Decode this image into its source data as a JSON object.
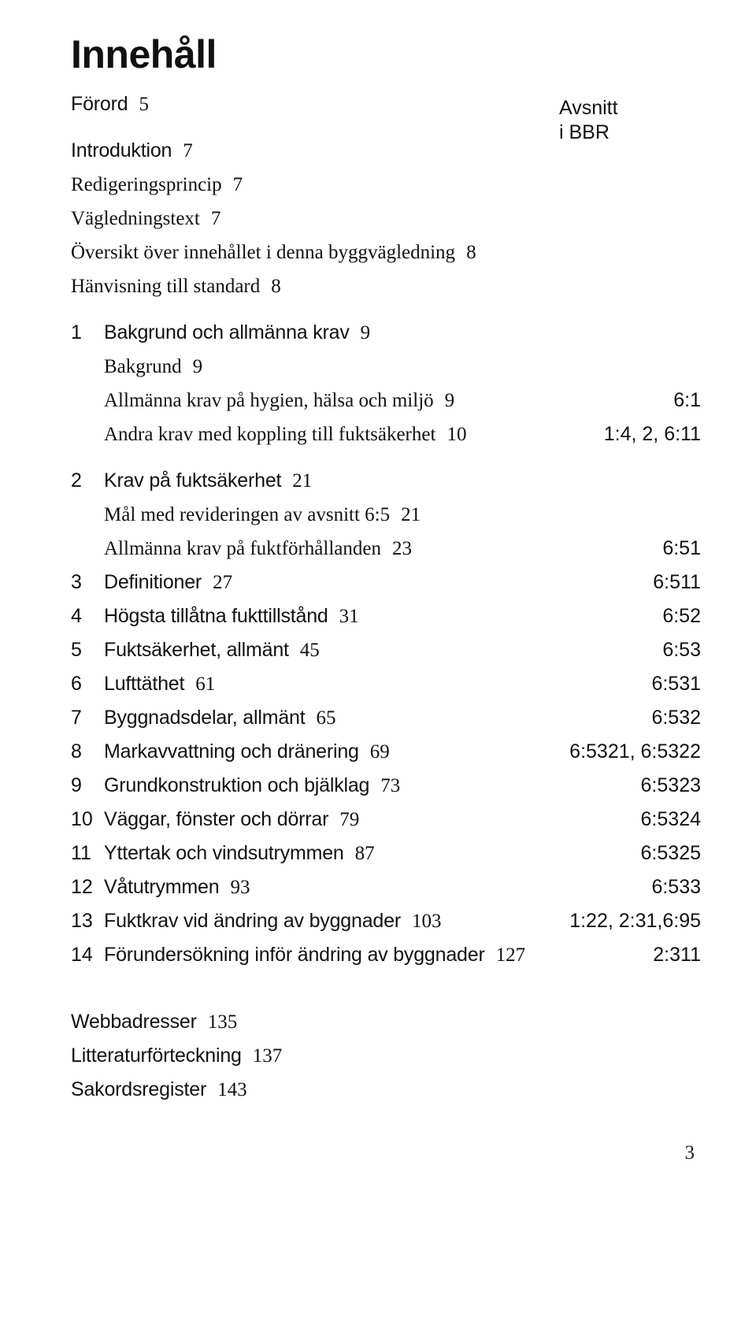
{
  "title": "Innehåll",
  "column_header_line1": "Avsnitt",
  "column_header_line2": "i BBR",
  "page_number": "3",
  "rows": [
    {
      "num": "",
      "label": "Förord",
      "page": "5",
      "bbr": "",
      "style": "bold",
      "gap": ""
    },
    {
      "num": "",
      "label": "Introduktion",
      "page": "7",
      "bbr": "",
      "style": "bold",
      "gap": "before"
    },
    {
      "num": "",
      "label": "Redigeringsprincip",
      "page": "7",
      "bbr": "",
      "style": "serif",
      "gap": ""
    },
    {
      "num": "",
      "label": "Vägledningstext",
      "page": "7",
      "bbr": "",
      "style": "serif",
      "gap": ""
    },
    {
      "num": "",
      "label": "Översikt över innehållet i denna byggvägledning",
      "page": "8",
      "bbr": "",
      "style": "serif",
      "gap": ""
    },
    {
      "num": "",
      "label": "Hänvisning till standard",
      "page": "8",
      "bbr": "",
      "style": "serif",
      "gap": ""
    },
    {
      "num": "1",
      "label": "Bakgrund och allmänna krav",
      "page": "9",
      "bbr": "",
      "style": "bold",
      "gap": "before"
    },
    {
      "num": "",
      "label": "Bakgrund",
      "page": "9",
      "bbr": "",
      "style": "serif",
      "gap": "",
      "indent": true
    },
    {
      "num": "",
      "label": "Allmänna krav på hygien, hälsa och miljö",
      "page": "9",
      "bbr": "6:1",
      "style": "serif",
      "gap": "",
      "indent": true
    },
    {
      "num": "",
      "label": "Andra krav med koppling till fuktsäkerhet",
      "page": "10",
      "bbr": "1:4, 2, 6:11",
      "style": "serif",
      "gap": "",
      "indent": true
    },
    {
      "num": "2",
      "label": "Krav på fuktsäkerhet",
      "page": "21",
      "bbr": "",
      "style": "bold",
      "gap": "before"
    },
    {
      "num": "",
      "label": "Mål med revideringen av avsnitt 6:5",
      "page": "21",
      "bbr": "",
      "style": "serif",
      "gap": "",
      "indent": true
    },
    {
      "num": "",
      "label": "Allmänna krav på fuktförhållanden",
      "page": "23",
      "bbr": "6:51",
      "style": "serif",
      "gap": "",
      "indent": true
    },
    {
      "num": "3",
      "label": "Definitioner",
      "page": "27",
      "bbr": "6:511",
      "style": "bold",
      "gap": ""
    },
    {
      "num": "4",
      "label": "Högsta tillåtna fukttillstånd",
      "page": "31",
      "bbr": "6:52",
      "style": "bold",
      "gap": ""
    },
    {
      "num": "5",
      "label": "Fuktsäkerhet, allmänt",
      "page": "45",
      "bbr": "6:53",
      "style": "bold",
      "gap": ""
    },
    {
      "num": "6",
      "label": "Lufttäthet",
      "page": "61",
      "bbr": "6:531",
      "style": "bold",
      "gap": ""
    },
    {
      "num": "7",
      "label": "Byggnadsdelar, allmänt",
      "page": "65",
      "bbr": "6:532",
      "style": "bold",
      "gap": ""
    },
    {
      "num": "8",
      "label": "Markavvattning och dränering",
      "page": "69",
      "bbr": "6:5321, 6:5322",
      "style": "bold",
      "gap": ""
    },
    {
      "num": "9",
      "label": "Grundkonstruktion och bjälklag",
      "page": "73",
      "bbr": "6:5323",
      "style": "bold",
      "gap": ""
    },
    {
      "num": "10",
      "label": "Väggar, fönster och dörrar",
      "page": "79",
      "bbr": "6:5324",
      "style": "bold",
      "gap": ""
    },
    {
      "num": "11",
      "label": "Yttertak och vindsutrymmen",
      "page": "87",
      "bbr": "6:5325",
      "style": "bold",
      "gap": ""
    },
    {
      "num": "12",
      "label": "Våtutrymmen",
      "page": "93",
      "bbr": "6:533",
      "style": "bold",
      "gap": ""
    },
    {
      "num": "13",
      "label": "Fuktkrav vid ändring av byggnader",
      "page": "103",
      "bbr": "1:22, 2:31,6:95",
      "style": "bold",
      "gap": ""
    },
    {
      "num": "14",
      "label": "Förundersökning inför ändring av byggnader",
      "page": "127",
      "bbr": "2:311",
      "style": "bold",
      "gap": ""
    },
    {
      "num": "",
      "label": "Webbadresser",
      "page": "135",
      "bbr": "",
      "style": "bold",
      "gap": "before-lg"
    },
    {
      "num": "",
      "label": "Litteraturförteckning",
      "page": "137",
      "bbr": "",
      "style": "bold",
      "gap": ""
    },
    {
      "num": "",
      "label": "Sakordsregister",
      "page": "143",
      "bbr": "",
      "style": "bold",
      "gap": ""
    }
  ]
}
